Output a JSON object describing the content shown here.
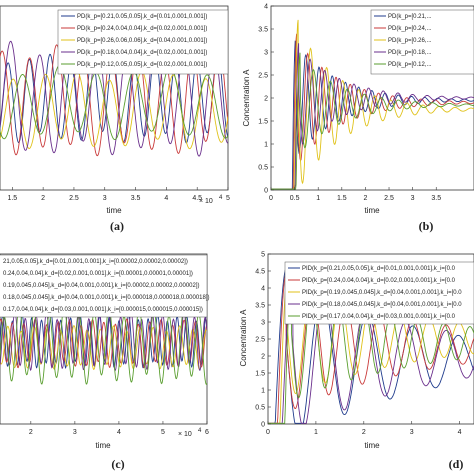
{
  "chart_data": [
    {
      "panel_label": "(a)",
      "type": "line",
      "xlabel": "time",
      "ylabel": "",
      "xlim": [
        1.3,
        5
      ],
      "ylim": [
        0,
        4
      ],
      "x_exponent": "× 10",
      "x_exponent_power": "4",
      "x_ticks": [
        "1.5",
        "2",
        "2.5",
        "3",
        "3.5",
        "4",
        "4.5",
        "5"
      ],
      "legend_placement": "top-right",
      "grid": false,
      "series": [
        {
          "name": "PD(k_p=[0.21,0.05,0.05],k_d=[0.01,0.001,0.001])",
          "color": "#1f3b8c",
          "period": 0.34,
          "phase": 0.2,
          "amp": 0.85,
          "mean": 2.0
        },
        {
          "name": "PD(k_p=[0.24,0.04,0.04],k_d=[0.02,0.001,0.001])",
          "color": "#c93a3a",
          "period": 0.44,
          "phase": 1.3,
          "amp": 1.05,
          "mean": 1.95
        },
        {
          "name": "PD(k_p=[0.26,0.06,0.06],k_d=[0.04,0.001,0.001])",
          "color": "#e0c21a",
          "period": 0.52,
          "phase": 2.1,
          "amp": 0.75,
          "mean": 1.75
        },
        {
          "name": "PD(k_p=[0.18,0.04,0.04],k_d=[0.02,0.001,0.001])",
          "color": "#6a2f8c",
          "period": 0.47,
          "phase": 0.7,
          "amp": 1.1,
          "mean": 2.0
        },
        {
          "name": "PD(k_p=[0.12,0.05,0.05],k_d=[0.02,0.001,0.001])",
          "color": "#5a9e2f",
          "period": 0.6,
          "phase": 3.0,
          "amp": 0.7,
          "mean": 1.9
        }
      ]
    },
    {
      "panel_label": "(b)",
      "type": "line",
      "xlabel": "time",
      "ylabel": "Concentration A",
      "xlim": [
        0,
        4.3
      ],
      "ylim": [
        0,
        4
      ],
      "y_ticks": [
        "0",
        "0.5",
        "1",
        "1.5",
        "2",
        "2.5",
        "3",
        "3.5",
        "4"
      ],
      "x_ticks": [
        "0",
        "0.5",
        "1",
        "1.5",
        "2",
        "2.5",
        "3",
        "3.5"
      ],
      "legend_placement": "top-right",
      "grid": false,
      "series": [
        {
          "name": "PD(k_p=[0.21,...",
          "color": "#1f3b8c",
          "peak": 3.3,
          "period": 0.28,
          "mean": 1.95
        },
        {
          "name": "PD(k_p=[0.24,...",
          "color": "#c93a3a",
          "peak": 3.4,
          "period": 0.3,
          "mean": 1.9
        },
        {
          "name": "PD(k_p=[0.26,...",
          "color": "#e0c21a",
          "peak": 3.7,
          "period": 0.34,
          "mean": 1.75
        },
        {
          "name": "PD(k_p=[0.18,...",
          "color": "#6a2f8c",
          "peak": 3.2,
          "period": 0.31,
          "mean": 2.0
        },
        {
          "name": "PD(k_p=[0.12,...",
          "color": "#5a9e2f",
          "peak": 3.0,
          "period": 0.36,
          "mean": 1.85
        }
      ]
    },
    {
      "panel_label": "(c)",
      "type": "line",
      "xlabel": "time",
      "ylabel": "",
      "xlim": [
        1.3,
        6
      ],
      "ylim": [
        0,
        4
      ],
      "x_exponent": "× 10",
      "x_exponent_power": "4",
      "x_ticks": [
        "2",
        "3",
        "4",
        "5",
        "6"
      ],
      "legend_placement": "top-left",
      "grid": false,
      "series": [
        {
          "name": "21,0.05,0.05],k_d=[0.01,0.001,0.001],k_i=[0.00002,0.00002,0.00002])",
          "color": "#1f3b8c",
          "period": 0.22,
          "phase": 0.4,
          "amp": 0.55,
          "mean": 1.95
        },
        {
          "name": "0.24,0.04,0.04],k_d=[0.02,0.001,0.001],k_i=[0.00001,0.00001,0.00001])",
          "color": "#c93a3a",
          "period": 0.26,
          "phase": 1.1,
          "amp": 0.5,
          "mean": 1.9
        },
        {
          "name": "0.19,0.045,0.045],k_d=[0.04,0.001,0.001],k_i=[0.00002,0.00002,0.00002])",
          "color": "#e0c21a",
          "period": 0.3,
          "phase": 2.0,
          "amp": 0.45,
          "mean": 1.8
        },
        {
          "name": "0.18,0.045,0.045],k_d=[0.04,0.001,0.001],k_i=[0.000018,0.000018,0.000018])",
          "color": "#6a2f8c",
          "period": 0.24,
          "phase": 2.7,
          "amp": 0.6,
          "mean": 1.95
        },
        {
          "name": "0.17,0.04,0.04],k_d=[0.03,0.001,0.001],k_i=[0.000015,0.000015,0.000015])",
          "color": "#5a9e2f",
          "period": 0.34,
          "phase": 0.9,
          "amp": 0.8,
          "mean": 1.85
        }
      ]
    },
    {
      "panel_label": "(d)",
      "type": "line",
      "xlabel": "time",
      "ylabel": "Concentration A",
      "xlim": [
        0,
        4.3
      ],
      "ylim": [
        0,
        5
      ],
      "y_ticks": [
        "0",
        "0.5",
        "1",
        "1.5",
        "2",
        "2.5",
        "3",
        "3.5",
        "4",
        "4.5",
        "5"
      ],
      "x_ticks": [
        "0",
        "1",
        "2",
        "3",
        "4"
      ],
      "legend_placement": "top-right",
      "grid": false,
      "series": [
        {
          "name": "PID(k_p=[0.21,0.05,0.05],k_d=[0.01,0.001,0.001],k_i=[0.0",
          "color": "#1f3b8c",
          "peak": 4.6,
          "period": 0.95,
          "mean": 1.9
        },
        {
          "name": "PID(k_p=[0.24,0.04,0.04],k_d=[0.02,0.001,0.001],k_i=[0.0",
          "color": "#c93a3a",
          "peak": 4.4,
          "period": 0.7,
          "mean": 2.3
        },
        {
          "name": "PID(k_p=[0.19,0.045,0.045],k_d=[0.04,0.001,0.001],k_i=[0.0",
          "color": "#e0c21a",
          "peak": 4.3,
          "period": 0.62,
          "mean": 2.5
        },
        {
          "name": "PID(k_p=[0.18,0.045,0.045],k_d=[0.04,0.001,0.001],k_i=[0.0",
          "color": "#6a2f8c",
          "peak": 4.5,
          "period": 0.85,
          "mean": 2.0
        },
        {
          "name": "PID(k_p=[0.17,0.04,0.04],k_d=[0.03,0.001,0.001],k_i=[0.0",
          "color": "#5a9e2f",
          "peak": 4.2,
          "period": 0.55,
          "mean": 2.4
        }
      ]
    }
  ]
}
